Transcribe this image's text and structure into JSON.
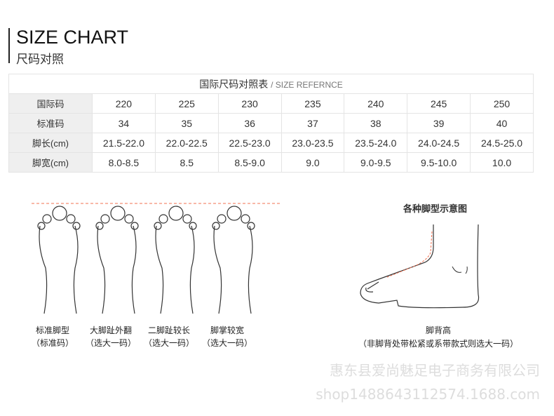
{
  "header": {
    "title": "SIZE CHART",
    "subtitle": "尺码对照"
  },
  "table": {
    "caption": "国际尺码对照表",
    "caption_en": "/ SIZE REFERNCE",
    "rows": [
      {
        "label": "国际码",
        "values": [
          "220",
          "225",
          "230",
          "235",
          "240",
          "245",
          "250"
        ]
      },
      {
        "label": "标准码",
        "values": [
          "34",
          "35",
          "36",
          "37",
          "38",
          "39",
          "40"
        ]
      },
      {
        "label": "脚长(cm)",
        "values": [
          "21.5-22.0",
          "22.0-22.5",
          "22.5-23.0",
          "23.0-23.5",
          "23.5-24.0",
          "24.0-24.5",
          "24.5-25.0"
        ]
      },
      {
        "label": "脚宽(cm)",
        "values": [
          "8.0-8.5",
          "8.5",
          "8.5-9.0",
          "9.0",
          "9.0-9.5",
          "9.5-10.0",
          "10.0"
        ]
      }
    ]
  },
  "foot_types": [
    {
      "name": "标准脚型",
      "note": "（标准码）"
    },
    {
      "name": "大脚趾外翻",
      "note": "（选大一码）"
    },
    {
      "name": "二脚趾较长",
      "note": "（选大一码）"
    },
    {
      "name": "脚掌较宽",
      "note": "（选大一码）"
    }
  ],
  "side_view": {
    "title": "各种脚型示意图",
    "name": "脚背高",
    "note": "（非脚背处带松紧或系带款式则选大一码）"
  },
  "watermark": {
    "company": "惠东县爱尚魅足电子商务有限公司",
    "shop": "shop1488643112574.1688.com"
  },
  "colors": {
    "guide_line": "#f07050"
  }
}
